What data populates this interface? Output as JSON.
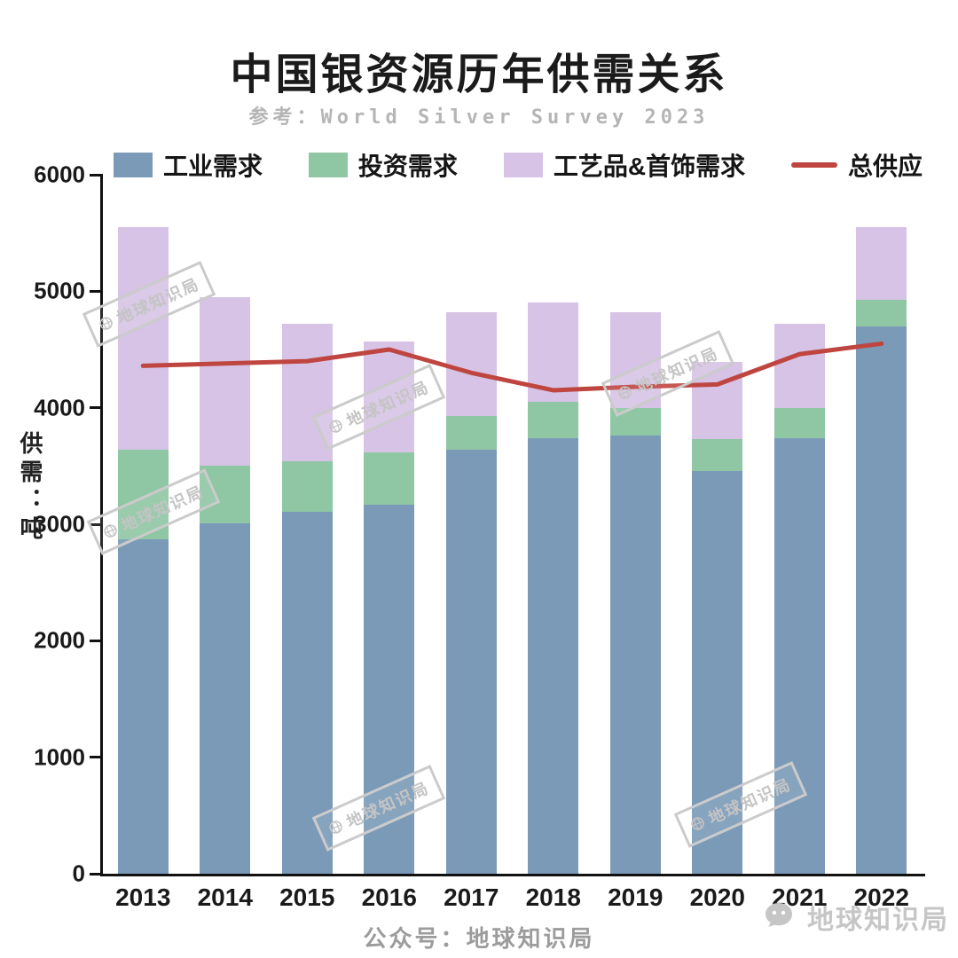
{
  "title": "中国银资源历年供需关系",
  "subtitle": "参考：World Silver Survey 2023",
  "ylabel": "供需：吨",
  "footer": "公众号：地球知识局",
  "watermark_text": "地球知识局",
  "colors": {
    "industrial": "#7a9ab8",
    "investment": "#8fc6a3",
    "jewelry": "#d6c3e5",
    "supply_line": "#bf4640",
    "axis": "#111111",
    "subtitle_gray": "#b5b5b5",
    "footer_gray": "#9c9c9c",
    "watermark_gray": "#c6c6c6"
  },
  "chart_data": {
    "type": "bar",
    "stacked": true,
    "title": "中国银资源历年供需关系",
    "xlabel": "",
    "ylabel": "供需：吨",
    "categories": [
      "2013",
      "2014",
      "2015",
      "2016",
      "2017",
      "2018",
      "2019",
      "2020",
      "2021",
      "2022"
    ],
    "series": [
      {
        "name": "工业需求",
        "type": "bar",
        "color": "#7a9ab8",
        "values": [
          2870,
          3010,
          3110,
          3170,
          3640,
          3740,
          3760,
          3460,
          3740,
          4700
        ]
      },
      {
        "name": "投资需求",
        "type": "bar",
        "color": "#8fc6a3",
        "values": [
          770,
          490,
          430,
          450,
          290,
          310,
          240,
          270,
          260,
          230
        ]
      },
      {
        "name": "工艺品&首饰需求",
        "type": "bar",
        "color": "#d6c3e5",
        "values": [
          1910,
          1450,
          1180,
          950,
          890,
          850,
          820,
          660,
          720,
          620
        ]
      },
      {
        "name": "总供应",
        "type": "line",
        "color": "#bf4640",
        "values": [
          4360,
          4380,
          4400,
          4500,
          4300,
          4150,
          4180,
          4200,
          4460,
          4550
        ]
      }
    ],
    "ylim": [
      0,
      6000
    ],
    "yticks": [
      0,
      1000,
      2000,
      3000,
      4000,
      5000,
      6000
    ],
    "legend_position": "top",
    "grid": false
  }
}
